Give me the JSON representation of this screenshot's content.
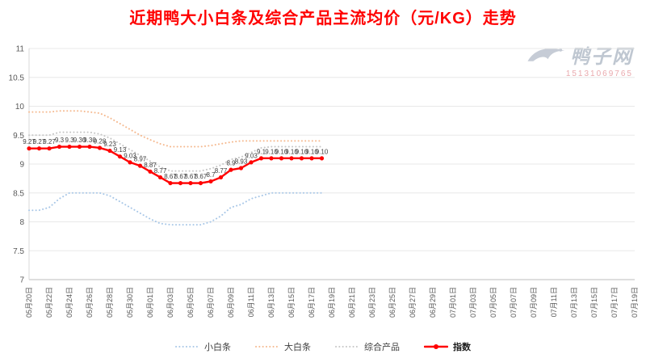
{
  "title": "近期鸭大小白条及综合产品主流均价（元/KG）走势",
  "watermark": {
    "brand": "鸭子网",
    "phone": "15131069765"
  },
  "chart_data": {
    "type": "line",
    "title": "近期鸭大小白条及综合产品主流均价（元/KG）走势",
    "xlabel": "",
    "ylabel": "",
    "ylim": [
      7,
      11
    ],
    "ytick_step": 0.5,
    "ytick_labels": [
      "11",
      "10.5",
      "10",
      "9.5",
      "9",
      "8.5",
      "8",
      "7.5",
      "7"
    ],
    "grid": "horizontal",
    "legend_position": "bottom",
    "tick_interval": 2,
    "tick_labels": [
      "05月20日",
      "05月22日",
      "05月24日",
      "05月26日",
      "05月28日",
      "05月30日",
      "06月01日",
      "06月03日",
      "06月05日",
      "06月07日",
      "06月09日",
      "06月11日",
      "06月13日",
      "06月15日",
      "06月17日",
      "06月19日",
      "06月21日",
      "06月23日",
      "06月25日",
      "06月27日",
      "06月29日",
      "07月01日",
      "07月03日",
      "07月05日",
      "07月07日",
      "07月09日",
      "07月11日",
      "07月13日",
      "07月15日",
      "07月17日",
      "07月19日"
    ],
    "dates": [
      "05月20日",
      "05月21日",
      "05月22日",
      "05月23日",
      "05月24日",
      "05月25日",
      "05月26日",
      "05月27日",
      "05月28日",
      "05月29日",
      "05月30日",
      "05月31日",
      "06月01日",
      "06月02日",
      "06月03日",
      "06月04日",
      "06月05日",
      "06月06日",
      "06月07日",
      "06月08日",
      "06月09日",
      "06月10日",
      "06月11日",
      "06月12日",
      "06月13日",
      "06月14日",
      "06月15日",
      "06月16日",
      "06月17日",
      "06月18日"
    ],
    "series": [
      {
        "name": "小白条",
        "color": "#a8c7e7",
        "style": "dotted",
        "values": [
          8.2,
          8.2,
          8.25,
          8.4,
          8.5,
          8.5,
          8.5,
          8.5,
          8.45,
          8.35,
          8.25,
          8.15,
          8.05,
          7.97,
          7.95,
          7.95,
          7.95,
          7.95,
          8.0,
          8.1,
          8.25,
          8.3,
          8.4,
          8.45,
          8.5,
          8.5,
          8.5,
          8.5,
          8.5,
          8.5
        ]
      },
      {
        "name": "大白条",
        "color": "#f5b98f",
        "style": "dotted",
        "values": [
          9.9,
          9.9,
          9.9,
          9.92,
          9.92,
          9.92,
          9.9,
          9.88,
          9.8,
          9.7,
          9.6,
          9.5,
          9.42,
          9.35,
          9.3,
          9.3,
          9.3,
          9.3,
          9.32,
          9.35,
          9.38,
          9.4,
          9.4,
          9.4,
          9.4,
          9.4,
          9.4,
          9.4,
          9.4,
          9.4
        ]
      },
      {
        "name": "综合产品",
        "color": "#c6c6c6",
        "style": "dotted",
        "values": [
          9.5,
          9.5,
          9.5,
          9.55,
          9.55,
          9.55,
          9.55,
          9.52,
          9.45,
          9.35,
          9.25,
          9.15,
          9.05,
          8.95,
          8.88,
          8.88,
          8.88,
          8.88,
          8.92,
          8.98,
          9.08,
          9.12,
          9.2,
          9.28,
          9.3,
          9.3,
          9.3,
          9.3,
          9.3,
          9.3
        ]
      },
      {
        "name": "指数",
        "color": "#ff0000",
        "style": "solid-marker",
        "values": [
          9.27,
          9.27,
          9.27,
          9.3,
          9.3,
          9.3,
          9.3,
          9.28,
          9.23,
          9.13,
          9.03,
          8.97,
          8.87,
          8.77,
          8.67,
          8.67,
          8.67,
          8.67,
          8.7,
          8.77,
          8.9,
          8.93,
          9.03,
          9.1,
          9.1,
          9.1,
          9.1,
          9.1,
          9.1,
          9.1
        ],
        "value_labels": [
          "9.27",
          "9.27",
          "9.27",
          "9.3",
          "9.3",
          "9.30",
          "9.30",
          "9.28",
          "9.23",
          "9.13",
          "9.03",
          "8.97",
          "8.87",
          "8.77",
          "8.67",
          "8.67",
          "8.67",
          "8.67",
          "8.7",
          "8.77",
          "8.9",
          "8.93",
          "9.03",
          "9.1",
          "9.10",
          "9.10",
          "9.10",
          "9.10",
          "9.10",
          "9.10"
        ]
      }
    ]
  }
}
